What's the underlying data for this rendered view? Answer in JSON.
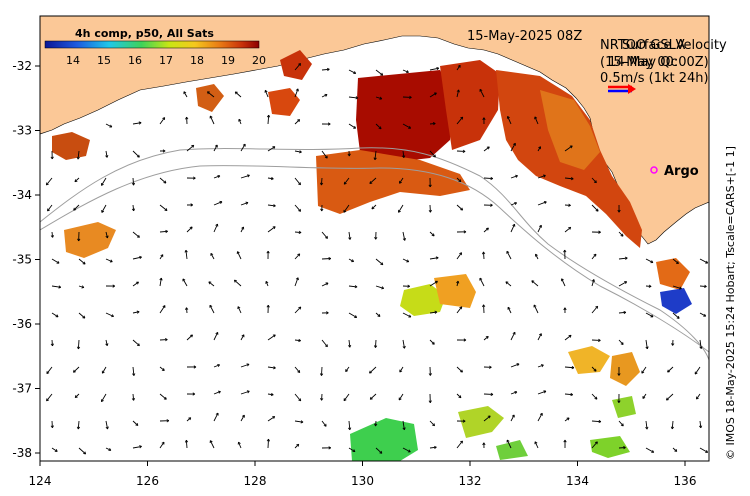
{
  "title": {
    "date_label": "15-May-2025 08Z"
  },
  "colorbar": {
    "label": "4h comp, p50, All Sats",
    "min": 14,
    "max": 20,
    "ticks": [
      "14",
      "15",
      "16",
      "17",
      "18",
      "19",
      "20"
    ]
  },
  "velocity_key": {
    "label_a": "NRTOO GSLA",
    "label_b": "(15-May 00:00Z)",
    "overlay_a": "Surface Velocity",
    "overlay_b": "14-May Qc",
    "scale": "0.5m/s (1kt 24h)"
  },
  "argo": {
    "label": "Argo",
    "marker_color": "#ff00ff"
  },
  "axes": {
    "x_ticks": [
      "124",
      "126",
      "128",
      "130",
      "132",
      "134",
      "136"
    ],
    "y_ticks": [
      "-32",
      "-33",
      "-34",
      "-35",
      "-36",
      "-37",
      "-38"
    ],
    "lon_range": [
      124,
      136.5
    ],
    "lat_range": [
      -38.2,
      -31.3
    ]
  },
  "colors": {
    "land": "#fbc897",
    "arrow": "#000000",
    "isobath": "#9e9e9e",
    "key_arrow": "#ff0000",
    "key_arrow_2": "#0000ff"
  },
  "credit": "© IMOS 18-May-2025 15:24 Hobart; Tscale=CARS+[-1 1]"
}
